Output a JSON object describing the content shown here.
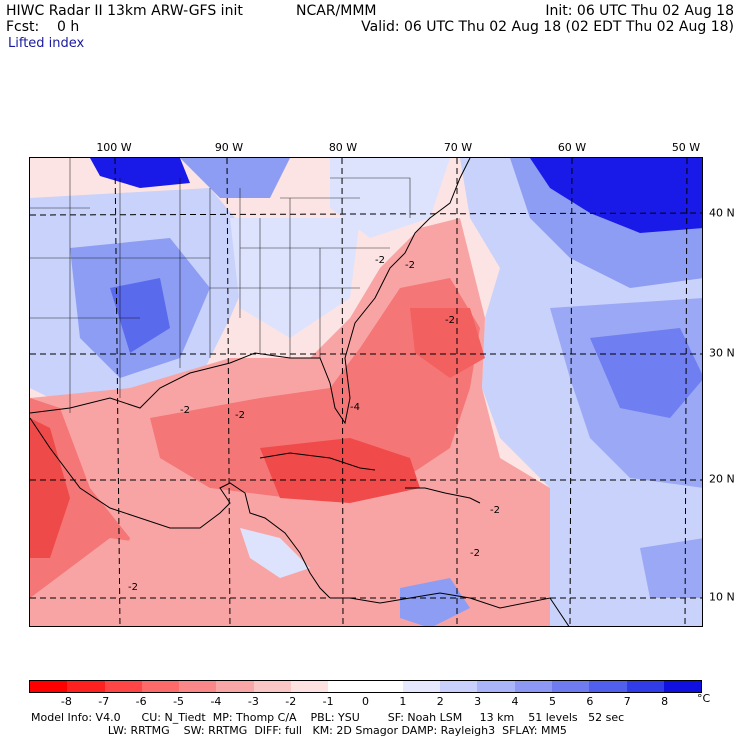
{
  "header": {
    "line1_left": "HIWC Radar II 13km ARW-GFS init",
    "line1_mid": "NCAR/MMM",
    "line1_right": "Init: 06 UTC Thu 02 Aug 18",
    "line2_left": "Fcst:    0 h",
    "line2_right": "Valid: 06 UTC Thu 02 Aug 18 (02 EDT Thu 02 Aug 18)",
    "field": "Lifted index"
  },
  "map": {
    "lon_labels": [
      "100 W",
      "90 W",
      "80 W",
      "70 W",
      "60 W",
      "50 W"
    ],
    "lat_labels": [
      "40 N",
      "30 N",
      "20 N",
      "10 N"
    ],
    "contour_label": "-2",
    "contour_label_4": "-4",
    "colors": {
      "red_strong": "#f04444",
      "red_mid": "#f77a7a",
      "red_light": "#fbb0b0",
      "pink": "#fde0e0",
      "white": "#ffffff",
      "blue_light": "#c8d2fa",
      "blue_mid": "#8c9df3",
      "blue_strong": "#4f5ee8",
      "blue_deep": "#1a1ae8"
    }
  },
  "colorbar": {
    "colors": [
      "#ff0000",
      "#ff2020",
      "#ff4545",
      "#fd6a6a",
      "#fa8888",
      "#f8a6a6",
      "#fac6c6",
      "#fde2e2",
      "#ffffff",
      "#ffffff",
      "#e6e9fd",
      "#c8d0fb",
      "#aab4f8",
      "#8c98f4",
      "#6e7cf0",
      "#5060ec",
      "#2f3ce8",
      "#1010e0"
    ],
    "labels": [
      "-8",
      "-7",
      "-6",
      "-5",
      "-4",
      "-3",
      "-2",
      "-1",
      "0",
      "1",
      "2",
      "3",
      "4",
      "5",
      "6",
      "7",
      "8"
    ],
    "unit": "°C"
  },
  "footer": {
    "line1": "Model Info: V4.0      CU: N_Tiedt  MP: Thomp C/A    PBL: YSU        SF: Noah LSM     13 km    51 levels   52 sec",
    "line2": "                      LW: RRTMG    SW: RRTMG  DIFF: full   KM: 2D Smagor DAMP: Rayleigh3  SFLAY: MM5"
  }
}
